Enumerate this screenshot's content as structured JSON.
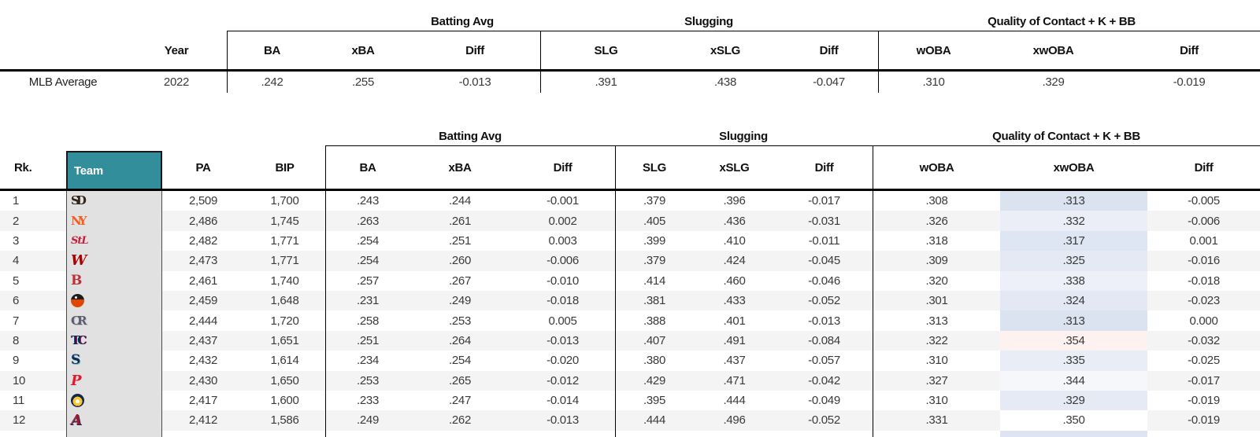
{
  "chart_data": [
    {
      "type": "table",
      "name": "mlb-average-summary-2022",
      "groups": [
        "Batting Avg",
        "Slugging",
        "Quality of Contact + K + BB"
      ],
      "columns": [
        "",
        "Year",
        "BA",
        "xBA",
        "Diff",
        "SLG",
        "xSLG",
        "Diff",
        "wOBA",
        "xwOBA",
        "Diff"
      ],
      "rows": [
        [
          "MLB Average",
          "2022",
          ".242",
          ".255",
          "-0.013",
          ".391",
          ".438",
          "-0.047",
          ".310",
          ".329",
          "-0.019"
        ]
      ]
    },
    {
      "type": "table",
      "name": "team-expected-stats-rankings",
      "groups": [
        "Batting Avg",
        "Slugging",
        "Quality of Contact + K + BB"
      ],
      "columns": [
        "Rk.",
        "Team",
        "PA",
        "BIP",
        "BA",
        "xBA",
        "Diff",
        "SLG",
        "xSLG",
        "Diff",
        "wOBA",
        "xwOBA",
        "Diff"
      ],
      "teams": [
        {
          "team": "San Diego Padres",
          "icon": "padres-sd-logo",
          "text": "SD",
          "cls": "padres"
        },
        {
          "team": "New York Mets",
          "icon": "mets-ny-logo",
          "text": "NY",
          "cls": "mets"
        },
        {
          "team": "St. Louis Cardinals",
          "icon": "cardinals-stl-logo",
          "text": "StL",
          "cls": "cardinals"
        },
        {
          "team": "Washington Nationals",
          "icon": "nationals-w-logo",
          "text": "W",
          "cls": "nationals"
        },
        {
          "team": "Boston Red Sox",
          "icon": "red-sox-b-logo",
          "text": "B",
          "cls": "redsox"
        },
        {
          "team": "Baltimore Orioles",
          "icon": "orioles-bird-logo",
          "text": "",
          "cls": "orioles"
        },
        {
          "team": "Colorado Rockies",
          "icon": "rockies-cr-logo",
          "text": "CR",
          "cls": "rockies"
        },
        {
          "team": "Minnesota Twins",
          "icon": "twins-tc-logo",
          "text": "TC",
          "cls": "twins"
        },
        {
          "team": "Seattle Mariners",
          "icon": "mariners-s-logo",
          "text": "S",
          "cls": "mariners"
        },
        {
          "team": "Philadelphia Phillies",
          "icon": "phillies-p-logo",
          "text": "P",
          "cls": "phillies"
        },
        {
          "team": "Milwaukee Brewers",
          "icon": "brewers-glove-logo",
          "text": "",
          "cls": "brewers"
        },
        {
          "team": "Atlanta Braves",
          "icon": "braves-a-logo",
          "text": "A",
          "cls": "braves"
        }
      ],
      "rows": [
        [
          "1",
          "",
          "2,509",
          "1,700",
          ".243",
          ".244",
          "-0.001",
          ".379",
          ".396",
          "-0.017",
          ".308",
          ".313",
          "-0.005"
        ],
        [
          "2",
          "",
          "2,486",
          "1,745",
          ".263",
          ".261",
          "0.002",
          ".405",
          ".436",
          "-0.031",
          ".326",
          ".332",
          "-0.006"
        ],
        [
          "3",
          "",
          "2,482",
          "1,771",
          ".254",
          ".251",
          "0.003",
          ".399",
          ".410",
          "-0.011",
          ".318",
          ".317",
          "0.001"
        ],
        [
          "4",
          "",
          "2,473",
          "1,771",
          ".254",
          ".260",
          "-0.006",
          ".379",
          ".424",
          "-0.045",
          ".309",
          ".325",
          "-0.016"
        ],
        [
          "5",
          "",
          "2,461",
          "1,740",
          ".257",
          ".267",
          "-0.010",
          ".414",
          ".460",
          "-0.046",
          ".320",
          ".338",
          "-0.018"
        ],
        [
          "6",
          "",
          "2,459",
          "1,648",
          ".231",
          ".249",
          "-0.018",
          ".381",
          ".433",
          "-0.052",
          ".301",
          ".324",
          "-0.023"
        ],
        [
          "7",
          "",
          "2,444",
          "1,720",
          ".258",
          ".253",
          "0.005",
          ".388",
          ".401",
          "-0.013",
          ".313",
          ".313",
          "0.000"
        ],
        [
          "8",
          "",
          "2,437",
          "1,651",
          ".251",
          ".264",
          "-0.013",
          ".407",
          ".491",
          "-0.084",
          ".322",
          ".354",
          "-0.032"
        ],
        [
          "9",
          "",
          "2,432",
          "1,614",
          ".234",
          ".254",
          "-0.020",
          ".380",
          ".437",
          "-0.057",
          ".310",
          ".335",
          "-0.025"
        ],
        [
          "10",
          "",
          "2,430",
          "1,650",
          ".253",
          ".265",
          "-0.012",
          ".429",
          ".471",
          "-0.042",
          ".327",
          ".344",
          "-0.017"
        ],
        [
          "11",
          "",
          "2,417",
          "1,600",
          ".233",
          ".247",
          "-0.014",
          ".395",
          ".444",
          "-0.049",
          ".310",
          ".329",
          "-0.019"
        ],
        [
          "12",
          "",
          "2,412",
          "1,586",
          ".249",
          ".262",
          "-0.013",
          ".444",
          ".496",
          "-0.052",
          ".331",
          ".350",
          "-0.019"
        ]
      ],
      "xwoba_cell_colors": [
        "#dbe3f1",
        "#ebeef7",
        "#dfe6f3",
        "#e4e9f4",
        "#edf0f8",
        "#e3e8f4",
        "#dbe3f1",
        "#fdf2f0",
        "#e9edf6",
        "#f5f7fb",
        "#e6eaf5",
        "#ffffff"
      ],
      "partial_next_row_visible": true,
      "partial_row_xwoba_color": "#dfe3f2"
    }
  ],
  "colors": {
    "team_header_teal": "#318e9a",
    "team_column_gray": "#e1e1e1",
    "row_stripe": "#f4f4f4",
    "border_black": "#000000"
  }
}
